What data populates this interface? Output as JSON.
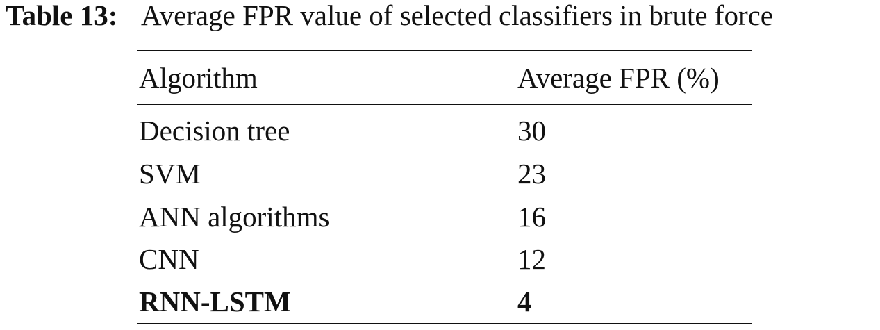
{
  "caption": {
    "label": "Table 13:",
    "text": "Average FPR value of selected classifiers in brute force"
  },
  "table": {
    "header": [
      "Algorithm",
      "Average FPR (%)"
    ],
    "rows": [
      [
        "Decision tree",
        30
      ],
      [
        "SVM",
        23
      ],
      [
        "ANN algorithms",
        16
      ],
      [
        "CNN",
        12
      ],
      [
        "RNN-LSTM",
        4
      ]
    ]
  }
}
